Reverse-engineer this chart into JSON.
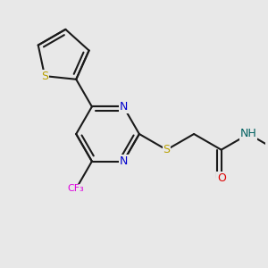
{
  "background_color": "#e8e8e8",
  "bond_color": "#1a1a1a",
  "bond_width": 1.5,
  "atom_colors": {
    "S": "#b8a000",
    "N": "#0000cc",
    "O": "#dd0000",
    "F": "#dd00dd",
    "NH": "#006060",
    "C": "#1a1a1a"
  },
  "figsize": [
    3.0,
    3.0
  ],
  "dpi": 100,
  "xlim": [
    0,
    10
  ],
  "ylim": [
    0,
    10
  ]
}
